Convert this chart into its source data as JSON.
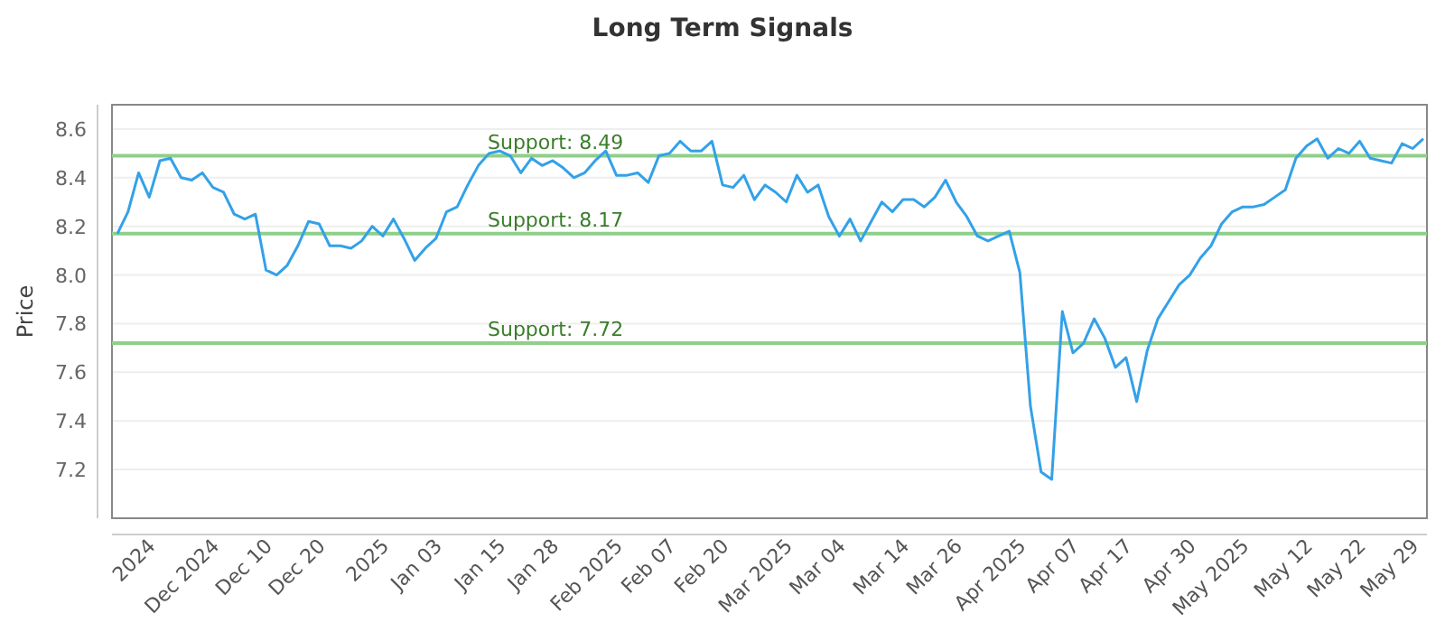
{
  "chart_data": {
    "type": "line",
    "title": "Long Term Signals",
    "ylabel": "Price",
    "categories": [
      null,
      null,
      null,
      "2024",
      null,
      null,
      null,
      null,
      null,
      "Dec 2024",
      null,
      null,
      null,
      null,
      "Dec 10",
      null,
      null,
      null,
      null,
      "Dec 20",
      null,
      null,
      null,
      null,
      null,
      "2025",
      null,
      null,
      null,
      null,
      "Jan 03",
      null,
      null,
      null,
      null,
      null,
      "Jan 15",
      null,
      null,
      null,
      null,
      "Jan 28",
      null,
      null,
      null,
      null,
      null,
      "Feb 2025",
      null,
      null,
      null,
      null,
      "Feb 07",
      null,
      null,
      null,
      null,
      "Feb 20",
      null,
      null,
      null,
      null,
      null,
      "Mar 2025",
      null,
      null,
      null,
      null,
      "Mar 04",
      null,
      null,
      null,
      null,
      null,
      "Mar 14",
      null,
      null,
      null,
      null,
      "Mar 26",
      null,
      null,
      null,
      null,
      null,
      "Apr 2025",
      null,
      null,
      null,
      null,
      "Apr 07",
      null,
      null,
      null,
      null,
      "Apr 17",
      null,
      null,
      null,
      null,
      null,
      "Apr 30",
      null,
      null,
      null,
      null,
      "May 2025",
      null,
      null,
      null,
      null,
      null,
      "May 12",
      null,
      null,
      null,
      null,
      "May 22",
      null,
      null,
      null,
      null,
      "May 29",
      null
    ],
    "series": [
      {
        "color": "#33a1e8",
        "values": [
          8.17,
          8.26,
          8.42,
          8.32,
          8.47,
          8.48,
          8.4,
          8.39,
          8.42,
          8.36,
          8.34,
          8.25,
          8.23,
          8.25,
          8.02,
          8.0,
          8.04,
          8.12,
          8.22,
          8.21,
          8.12,
          8.12,
          8.11,
          8.14,
          8.2,
          8.16,
          8.23,
          8.15,
          8.06,
          8.11,
          8.15,
          8.26,
          8.28,
          8.37,
          8.45,
          8.5,
          8.51,
          8.49,
          8.42,
          8.48,
          8.45,
          8.47,
          8.44,
          8.4,
          8.42,
          8.47,
          8.51,
          8.41,
          8.41,
          8.42,
          8.38,
          8.49,
          8.5,
          8.55,
          8.51,
          8.51,
          8.55,
          8.37,
          8.36,
          8.41,
          8.31,
          8.37,
          8.34,
          8.3,
          8.41,
          8.34,
          8.37,
          8.24,
          8.16,
          8.23,
          8.14,
          8.22,
          8.3,
          8.26,
          8.31,
          8.31,
          8.28,
          8.32,
          8.39,
          8.3,
          8.24,
          8.16,
          8.14,
          8.16,
          8.18,
          8.01,
          7.46,
          7.19,
          7.16,
          7.85,
          7.68,
          7.72,
          7.82,
          7.74,
          7.62,
          7.66,
          7.48,
          7.69,
          7.82,
          7.89,
          7.96,
          8.0,
          8.07,
          8.12,
          8.21,
          8.26,
          8.28,
          8.28,
          8.29,
          8.32,
          8.35,
          8.48,
          8.53,
          8.56,
          8.48,
          8.52,
          8.5,
          8.55,
          8.48,
          8.47,
          8.46,
          8.54,
          8.52,
          8.56
        ]
      }
    ],
    "ylim": [
      7.0,
      8.7
    ],
    "yticks": [
      7.2,
      7.4,
      7.6,
      7.8,
      {
        "value": 8,
        "label": "8.0"
      },
      8.2,
      8.4,
      8.6
    ],
    "grid": "y",
    "marker": "none",
    "line_style": "solid",
    "ref_lines": [
      {
        "axis": "y",
        "value": 8.49,
        "label": "Support: 8.49",
        "color": "#8fcf8a"
      },
      {
        "axis": "y",
        "value": 8.17,
        "label": "Support: 8.17",
        "color": "#8fcf8a"
      },
      {
        "axis": "y",
        "value": 7.72,
        "label": "Support: 7.72",
        "color": "#8fcf8a"
      }
    ]
  }
}
